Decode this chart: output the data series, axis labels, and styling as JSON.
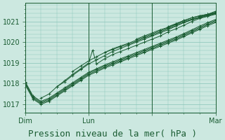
{
  "bg_color": "#cce8e0",
  "grid_color": "#88c4b8",
  "line_color": "#1a5c32",
  "title": "Pression niveau de la mer( hPa )",
  "ylim": [
    1016.6,
    1021.9
  ],
  "xlim": [
    0,
    48
  ],
  "yticks": [
    1017,
    1018,
    1019,
    1020,
    1021
  ],
  "xtick_positions": [
    0,
    16,
    32,
    48
  ],
  "xtick_labels": [
    "Dim",
    "Lun",
    "",
    "Mar"
  ],
  "day_lines": [
    0,
    16,
    32,
    48
  ],
  "title_fontsize": 9,
  "tick_fontsize": 7,
  "series": [
    {
      "x": [
        0,
        2,
        4,
        6,
        8,
        10,
        12,
        14,
        16,
        18,
        20,
        22,
        24,
        26,
        28,
        30,
        32,
        34,
        36,
        38,
        40,
        42,
        44,
        46,
        48
      ],
      "y": [
        1018.1,
        1017.4,
        1017.15,
        1017.3,
        1017.55,
        1017.8,
        1018.05,
        1018.3,
        1018.55,
        1018.72,
        1018.9,
        1019.05,
        1019.2,
        1019.35,
        1019.5,
        1019.65,
        1019.8,
        1019.95,
        1020.1,
        1020.25,
        1020.42,
        1020.6,
        1020.78,
        1020.95,
        1021.1
      ]
    },
    {
      "x": [
        0,
        2,
        4,
        6,
        8,
        10,
        12,
        14,
        16,
        18,
        20,
        22,
        24,
        26,
        28,
        30,
        32,
        34,
        36,
        38,
        40,
        42,
        44,
        46,
        48
      ],
      "y": [
        1018.05,
        1017.35,
        1017.1,
        1017.25,
        1017.5,
        1017.75,
        1018.0,
        1018.25,
        1018.5,
        1018.68,
        1018.85,
        1019.0,
        1019.15,
        1019.3,
        1019.45,
        1019.6,
        1019.75,
        1019.9,
        1020.05,
        1020.2,
        1020.37,
        1020.55,
        1020.72,
        1020.9,
        1021.05
      ]
    },
    {
      "x": [
        0,
        2,
        4,
        6,
        8,
        10,
        12,
        14,
        16,
        18,
        20,
        22,
        24,
        26,
        28,
        30,
        32,
        34,
        36,
        38,
        40,
        42,
        44,
        46,
        48
      ],
      "y": [
        1018.0,
        1017.3,
        1017.05,
        1017.2,
        1017.45,
        1017.7,
        1017.95,
        1018.2,
        1018.45,
        1018.62,
        1018.8,
        1018.95,
        1019.1,
        1019.25,
        1019.4,
        1019.55,
        1019.7,
        1019.85,
        1020.0,
        1020.15,
        1020.32,
        1020.5,
        1020.67,
        1020.85,
        1021.0
      ]
    },
    {
      "x": [
        0,
        2,
        4,
        6,
        8,
        10,
        12,
        14,
        16,
        18,
        20,
        22,
        24,
        26,
        28,
        30,
        32,
        34,
        36,
        38,
        40,
        42,
        44,
        46,
        48
      ],
      "y": [
        1017.95,
        1017.25,
        1017.0,
        1017.15,
        1017.4,
        1017.65,
        1017.9,
        1018.15,
        1018.4,
        1018.57,
        1018.75,
        1018.9,
        1019.05,
        1019.2,
        1019.35,
        1019.5,
        1019.65,
        1019.8,
        1019.95,
        1020.1,
        1020.27,
        1020.45,
        1020.62,
        1020.8,
        1020.95
      ]
    },
    {
      "x": [
        4,
        6,
        8,
        10,
        12,
        14,
        16,
        17,
        18,
        20,
        22,
        24,
        26,
        28,
        30,
        32,
        34,
        36,
        38,
        40,
        42,
        44,
        46,
        48
      ],
      "y": [
        1017.3,
        1017.5,
        1017.85,
        1018.15,
        1018.45,
        1018.72,
        1019.0,
        1019.62,
        1018.95,
        1019.2,
        1019.4,
        1019.55,
        1019.7,
        1019.85,
        1020.0,
        1020.15,
        1020.3,
        1020.5,
        1020.65,
        1020.82,
        1021.0,
        1021.15,
        1021.25,
        1021.35
      ]
    },
    {
      "x": [
        8,
        10,
        12,
        14,
        16,
        18,
        20,
        22,
        24,
        26,
        28,
        30,
        32,
        34,
        36,
        38,
        40,
        42,
        44,
        46,
        48
      ],
      "y": [
        1017.85,
        1018.1,
        1018.4,
        1018.68,
        1018.95,
        1019.15,
        1019.35,
        1019.55,
        1019.7,
        1019.85,
        1020.0,
        1020.15,
        1020.3,
        1020.45,
        1020.6,
        1020.78,
        1020.95,
        1021.1,
        1021.2,
        1021.3,
        1021.4
      ]
    },
    {
      "x": [
        12,
        14,
        16,
        18,
        20,
        22,
        24,
        26,
        28,
        30,
        32,
        34,
        36,
        38,
        40,
        42,
        44,
        46,
        48
      ],
      "y": [
        1018.6,
        1018.85,
        1019.1,
        1019.3,
        1019.5,
        1019.68,
        1019.82,
        1019.95,
        1020.1,
        1020.25,
        1020.4,
        1020.55,
        1020.7,
        1020.85,
        1021.0,
        1021.12,
        1021.22,
        1021.32,
        1021.42
      ]
    },
    {
      "x": [
        20,
        22,
        24,
        26,
        28,
        30,
        32,
        34,
        36,
        38,
        40,
        42,
        44,
        46,
        48
      ],
      "y": [
        1019.5,
        1019.65,
        1019.78,
        1019.9,
        1020.05,
        1020.2,
        1020.35,
        1020.5,
        1020.65,
        1020.8,
        1020.95,
        1021.08,
        1021.18,
        1021.28,
        1021.38
      ]
    },
    {
      "x": [
        28,
        30,
        32,
        34,
        36,
        38,
        40,
        42,
        44,
        46,
        48
      ],
      "y": [
        1020.15,
        1020.3,
        1020.45,
        1020.6,
        1020.72,
        1020.88,
        1021.05,
        1021.18,
        1021.28,
        1021.35,
        1021.42
      ]
    },
    {
      "x": [
        36,
        38,
        40,
        42,
        44,
        46,
        48
      ],
      "y": [
        1020.75,
        1020.9,
        1021.05,
        1021.18,
        1021.28,
        1021.35,
        1021.45
      ]
    },
    {
      "x": [
        44,
        46,
        48
      ],
      "y": [
        1021.25,
        1021.35,
        1021.5
      ]
    }
  ]
}
